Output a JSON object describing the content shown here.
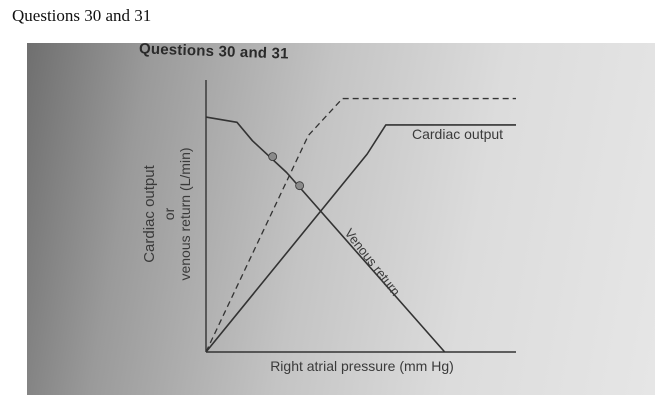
{
  "document": {
    "heading": "Questions 30 and 31"
  },
  "photo": {
    "heading": "Questions 30 and 31"
  },
  "chart_data": {
    "type": "line",
    "title": "",
    "xlabel": "Right atrial pressure (mm Hg)",
    "ylabel_lines": [
      "Cardiac output",
      "or",
      "venous return (L/min)"
    ],
    "xlim": [
      0,
      10
    ],
    "ylim": [
      0,
      10
    ],
    "grid": false,
    "series": [
      {
        "name": "Cardiac output",
        "style": "solid",
        "x": [
          0,
          5.2,
          5.8,
          10
        ],
        "y": [
          0,
          7.5,
          8.6,
          8.6
        ]
      },
      {
        "name": "",
        "style": "dashed",
        "x": [
          0,
          3.3,
          4.4,
          10
        ],
        "y": [
          0,
          8.2,
          9.6,
          9.6
        ]
      },
      {
        "name": "Venous return",
        "style": "solid",
        "x": [
          0,
          1.0,
          1.5,
          2.6,
          7.7
        ],
        "y": [
          8.9,
          8.7,
          8.0,
          6.8,
          0
        ]
      }
    ],
    "points": [
      {
        "x": 2.15,
        "y": 7.4
      },
      {
        "x": 3.02,
        "y": 6.3
      }
    ],
    "colors": {
      "line": "#333333",
      "point": "#8a8a8a"
    }
  }
}
